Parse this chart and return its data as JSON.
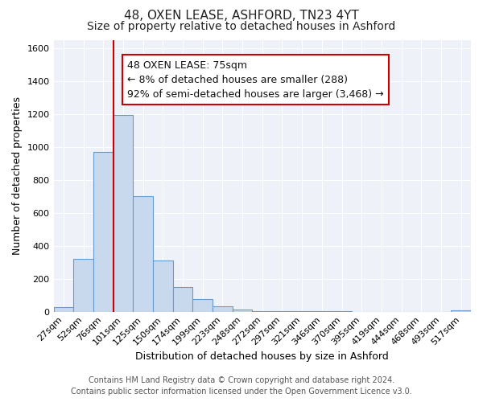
{
  "title": "48, OXEN LEASE, ASHFORD, TN23 4YT",
  "subtitle": "Size of property relative to detached houses in Ashford",
  "xlabel": "Distribution of detached houses by size in Ashford",
  "ylabel": "Number of detached properties",
  "bar_labels": [
    "27sqm",
    "52sqm",
    "76sqm",
    "101sqm",
    "125sqm",
    "150sqm",
    "174sqm",
    "199sqm",
    "223sqm",
    "248sqm",
    "272sqm",
    "297sqm",
    "321sqm",
    "346sqm",
    "370sqm",
    "395sqm",
    "419sqm",
    "444sqm",
    "468sqm",
    "493sqm",
    "517sqm"
  ],
  "bar_values": [
    25,
    320,
    970,
    1195,
    700,
    310,
    150,
    75,
    30,
    15,
    5,
    5,
    3,
    2,
    1,
    0,
    0,
    0,
    0,
    0,
    10
  ],
  "bar_color": "#c8d9ee",
  "bar_edge_color": "#6699cc",
  "ylim": [
    0,
    1650
  ],
  "yticks": [
    0,
    200,
    400,
    600,
    800,
    1000,
    1200,
    1400,
    1600
  ],
  "property_line_index": 2,
  "property_line_color": "#cc0000",
  "annotation_line1": "48 OXEN LEASE: 75sqm",
  "annotation_line2": "← 8% of detached houses are smaller (288)",
  "annotation_line3": "92% of semi-detached houses are larger (3,468) →",
  "footer_line1": "Contains HM Land Registry data © Crown copyright and database right 2024.",
  "footer_line2": "Contains public sector information licensed under the Open Government Licence v3.0.",
  "bg_color": "#ffffff",
  "plot_bg_color": "#eef2f8",
  "grid_color": "#ffffff",
  "title_fontsize": 11,
  "subtitle_fontsize": 10,
  "axis_label_fontsize": 9,
  "tick_fontsize": 8,
  "annotation_fontsize": 9,
  "footer_fontsize": 7
}
